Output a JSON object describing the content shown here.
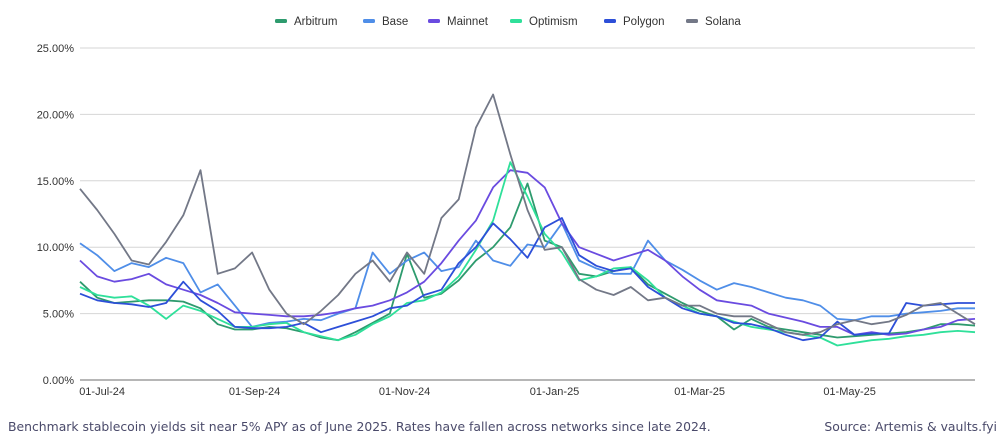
{
  "chart_data": {
    "type": "line",
    "title": "",
    "xlabel": "",
    "ylabel": "",
    "ylim": [
      0,
      25
    ],
    "y_ticks": [
      "0.00%",
      "5.00%",
      "10.00%",
      "15.00%",
      "20.00%",
      "25.00%"
    ],
    "y_tick_values": [
      0,
      5,
      10,
      15,
      20,
      25
    ],
    "x_ticks": [
      "01-Jul-24",
      "01-Sep-24",
      "01-Nov-24",
      "01-Jan-25",
      "01-Mar-25",
      "01-May-25"
    ],
    "x_tick_days": [
      9,
      71,
      132,
      193,
      252,
      313
    ],
    "x_range_days": [
      0,
      364
    ],
    "x_start_date": "2024-06-22",
    "grid": true,
    "legend_position": "top",
    "x_days": [
      0,
      7,
      14,
      21,
      28,
      35,
      42,
      49,
      56,
      63,
      70,
      77,
      84,
      91,
      98,
      105,
      112,
      119,
      126,
      133,
      140,
      147,
      154,
      161,
      168,
      175,
      182,
      189,
      196,
      203,
      210,
      217,
      224,
      231,
      238,
      245,
      252,
      259,
      266,
      273,
      280,
      287,
      294,
      301,
      308,
      315,
      322,
      329,
      336,
      343,
      350,
      357,
      364
    ],
    "series": [
      {
        "name": "Arbitrum",
        "color": "#2e9b6e",
        "values": [
          7.4,
          6.2,
          5.8,
          5.9,
          6.0,
          6.0,
          5.9,
          5.4,
          4.2,
          3.8,
          3.8,
          4.0,
          3.9,
          3.6,
          3.2,
          3.0,
          3.6,
          4.3,
          5.0,
          9.5,
          6.2,
          6.5,
          7.5,
          9.0,
          10.0,
          11.5,
          14.8,
          10.5,
          10.0,
          8.0,
          7.8,
          8.2,
          8.5,
          7.2,
          6.5,
          5.8,
          5.2,
          4.8,
          3.8,
          4.6,
          4.0,
          3.8,
          3.6,
          3.4,
          3.2,
          3.3,
          3.4,
          3.5,
          3.6,
          3.8,
          4.2,
          4.2,
          4.1
        ]
      },
      {
        "name": "Base",
        "color": "#4f8ee8",
        "values": [
          10.3,
          9.4,
          8.2,
          8.8,
          8.5,
          9.2,
          8.8,
          6.6,
          7.2,
          5.6,
          4.0,
          4.3,
          4.4,
          4.6,
          4.5,
          5.0,
          5.4,
          9.6,
          8.0,
          9.0,
          9.6,
          8.2,
          8.5,
          10.5,
          9.0,
          8.6,
          10.2,
          10.0,
          11.8,
          9.0,
          8.4,
          8.0,
          8.0,
          10.5,
          9.0,
          8.3,
          7.5,
          6.8,
          7.3,
          7.0,
          6.6,
          6.2,
          6.0,
          5.6,
          4.6,
          4.5,
          4.8,
          4.8,
          5.0,
          5.1,
          5.2,
          5.4,
          5.4
        ]
      },
      {
        "name": "Mainnet",
        "color": "#6a4be0",
        "values": [
          9.0,
          7.8,
          7.4,
          7.6,
          8.0,
          7.2,
          6.8,
          6.4,
          5.8,
          5.1,
          5.0,
          4.9,
          4.8,
          4.8,
          4.9,
          5.1,
          5.4,
          5.6,
          6.0,
          6.6,
          7.4,
          8.8,
          10.5,
          12.0,
          14.5,
          15.8,
          15.6,
          14.5,
          11.8,
          10.0,
          9.5,
          9.0,
          9.4,
          9.8,
          9.0,
          7.8,
          6.8,
          6.0,
          5.8,
          5.6,
          5.0,
          4.7,
          4.4,
          4.0,
          4.0,
          3.4,
          3.6,
          3.4,
          3.5,
          3.8,
          4.0,
          4.5,
          4.6
        ]
      },
      {
        "name": "Optimism",
        "color": "#2fe09a",
        "values": [
          7.0,
          6.4,
          6.2,
          6.3,
          5.6,
          4.6,
          5.6,
          5.2,
          4.6,
          4.0,
          4.0,
          4.2,
          4.3,
          3.6,
          3.3,
          3.0,
          3.4,
          4.2,
          4.8,
          5.8,
          6.0,
          6.6,
          7.8,
          9.8,
          12.0,
          16.4,
          13.8,
          11.0,
          9.6,
          7.5,
          7.8,
          8.4,
          8.5,
          7.5,
          6.2,
          5.6,
          5.0,
          4.8,
          4.4,
          4.0,
          3.8,
          3.6,
          3.4,
          3.2,
          2.6,
          2.8,
          3.0,
          3.1,
          3.3,
          3.4,
          3.6,
          3.7,
          3.6
        ]
      },
      {
        "name": "Polygon",
        "color": "#2d4fd8",
        "values": [
          6.5,
          6.0,
          5.8,
          5.7,
          5.5,
          5.8,
          7.4,
          6.0,
          5.2,
          4.0,
          3.9,
          3.9,
          4.0,
          4.3,
          3.6,
          4.0,
          4.4,
          4.8,
          5.4,
          5.6,
          6.4,
          6.8,
          8.8,
          10.0,
          11.8,
          10.6,
          9.2,
          11.5,
          12.2,
          9.4,
          8.6,
          8.2,
          8.4,
          7.0,
          6.2,
          5.4,
          5.0,
          4.8,
          4.3,
          4.2,
          3.9,
          3.4,
          3.0,
          3.2,
          4.4,
          3.4,
          3.5,
          3.5,
          5.8,
          5.6,
          5.7,
          5.8,
          5.8
        ]
      },
      {
        "name": "Solana",
        "color": "#737887",
        "values": [
          14.4,
          12.8,
          11.0,
          9.0,
          8.7,
          10.4,
          12.4,
          15.8,
          8.0,
          8.4,
          9.6,
          6.8,
          5.0,
          4.2,
          5.2,
          6.4,
          8.0,
          9.0,
          7.4,
          9.6,
          8.0,
          12.2,
          13.6,
          19.0,
          21.5,
          17.0,
          12.8,
          9.8,
          10.0,
          7.6,
          6.8,
          6.4,
          7.0,
          6.0,
          6.2,
          5.6,
          5.6,
          5.0,
          4.8,
          4.8,
          4.2,
          3.6,
          3.4,
          3.6,
          4.2,
          4.5,
          4.2,
          4.4,
          4.9,
          5.6,
          5.8,
          5.0,
          4.2
        ]
      }
    ]
  },
  "caption": {
    "left": "Benchmark stablecoin yields sit near 5% APY as of June 2025. Rates have fallen across networks since late 2024.",
    "right": "Source: Artemis & vaults.fyi"
  }
}
